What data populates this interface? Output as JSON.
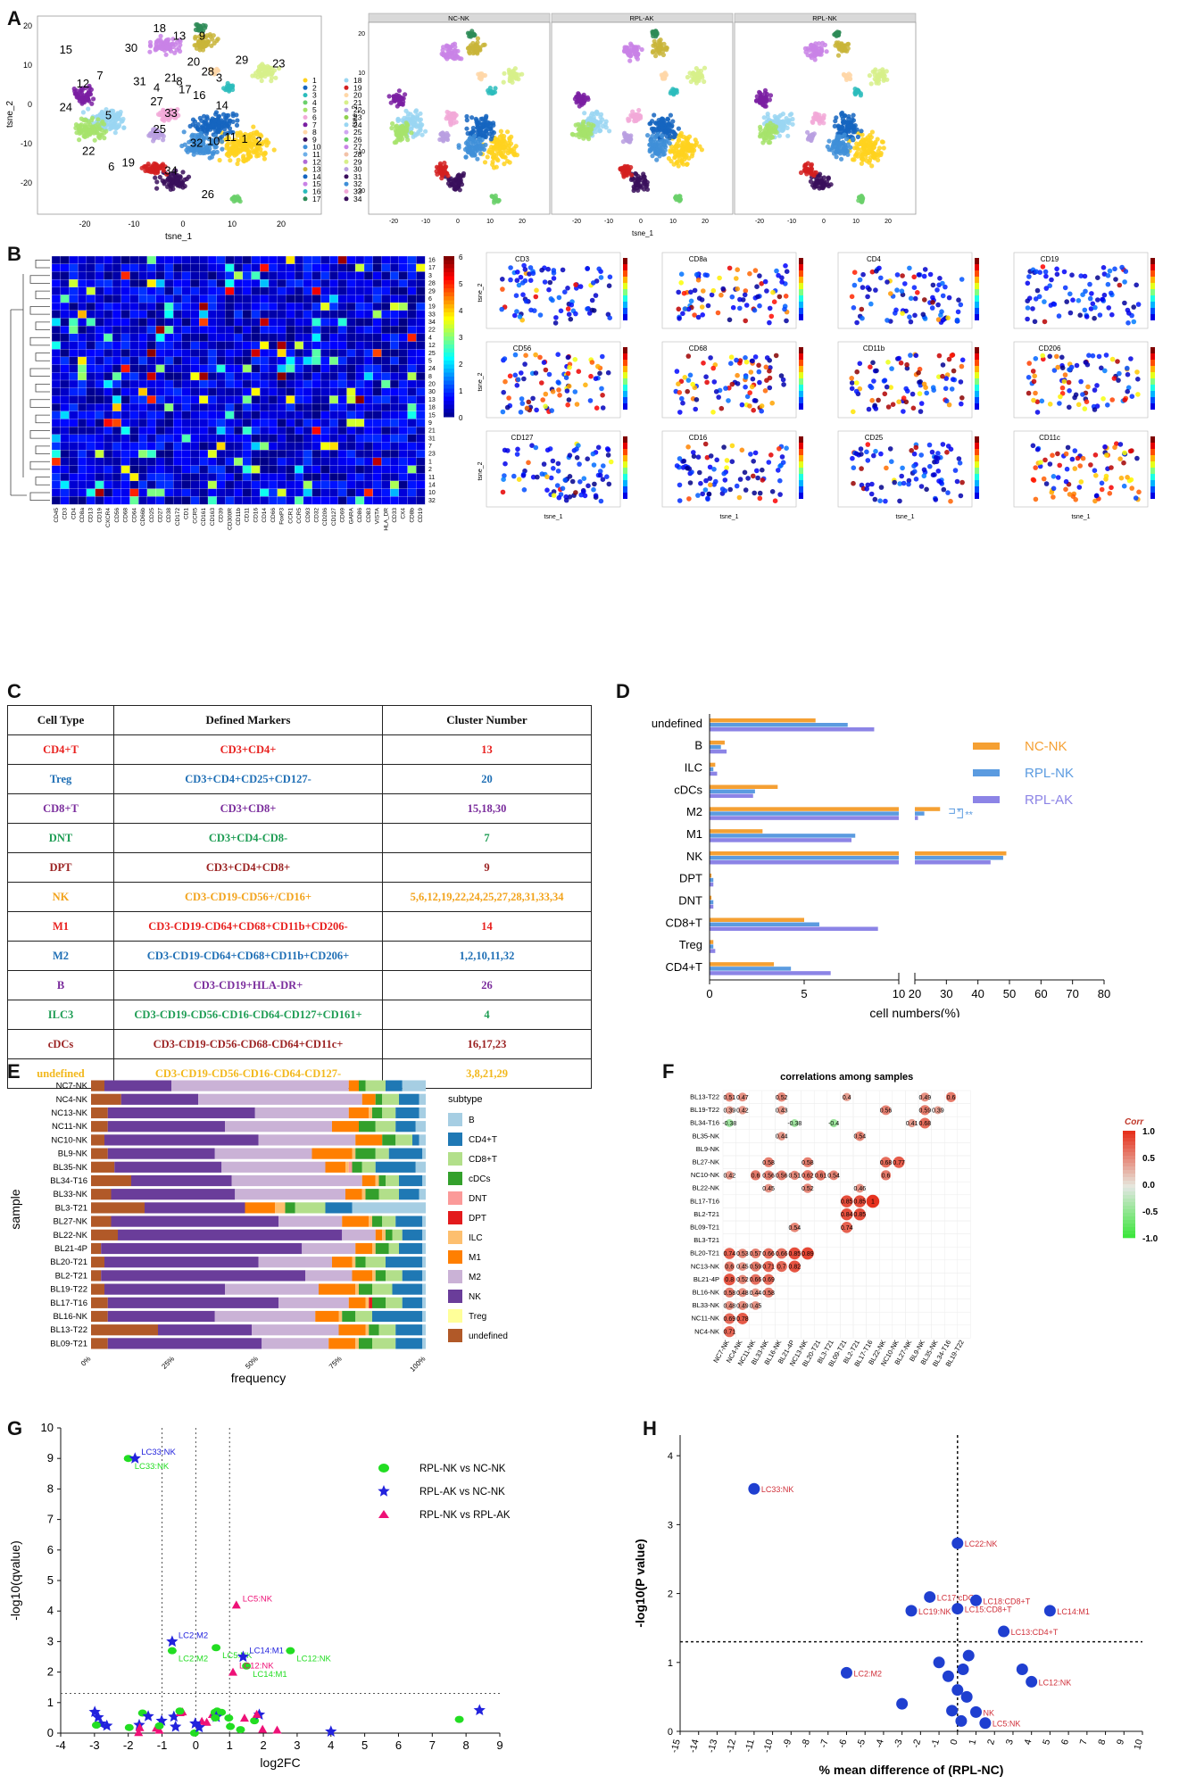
{
  "panels": {
    "A": "A",
    "B": "B",
    "C": "C",
    "D": "D",
    "E": "E",
    "F": "F",
    "G": "G",
    "H": "H"
  },
  "panelA": {
    "xlabel": "tsne_1",
    "ylabel": "tsne_2",
    "facets": [
      "NC-NK",
      "RPL-AK",
      "RPL-NK"
    ],
    "xticks": [
      "-20",
      "-10",
      "0",
      "10",
      "20"
    ],
    "yticks": [
      "20",
      "10",
      "0",
      "-10",
      "-20"
    ],
    "cluster_labels": [
      "1",
      "2",
      "3",
      "4",
      "5",
      "6",
      "7",
      "8",
      "9",
      "10",
      "11",
      "12",
      "13",
      "14",
      "15",
      "16",
      "17",
      "18",
      "19",
      "20",
      "21",
      "22",
      "23",
      "24",
      "25",
      "26",
      "27",
      "28",
      "29",
      "30",
      "31",
      "32",
      "33",
      "34"
    ]
  },
  "panelB": {
    "markers": [
      "CD45",
      "CD3",
      "CD4",
      "CD8a",
      "CD13",
      "CD19",
      "CXCR4",
      "CD56",
      "CD68",
      "CD64",
      "CD66b",
      "CD25",
      "CD27",
      "CD38",
      "CD172",
      "CD1",
      "CCR5",
      "CD161",
      "CD163",
      "CD39",
      "CD300R",
      "CD11b",
      "CD11",
      "CD16",
      "CD14",
      "CD66",
      "FoxP3",
      "CCR1",
      "CCR5",
      "CD93",
      "CD32",
      "CD206",
      "CD127",
      "CD69",
      "GARA",
      "CD86",
      "CD83",
      "VISTA",
      "HLA_DR",
      "CD33",
      "CX4",
      "CD8b",
      "CD19"
    ],
    "row_labels": [
      "16",
      "17",
      "3",
      "28",
      "29",
      "6",
      "19",
      "33",
      "34",
      "22",
      "4",
      "12",
      "25",
      "5",
      "24",
      "8",
      "20",
      "30",
      "13",
      "18",
      "15",
      "9",
      "21",
      "31",
      "7",
      "23",
      "1",
      "2",
      "11",
      "14",
      "10",
      "32"
    ],
    "colorbar": [
      "6",
      "5",
      "4",
      "3",
      "2",
      "1",
      "0"
    ],
    "feature_titles": [
      "CD3",
      "CD8a",
      "CD4",
      "CD19",
      "CD56",
      "CD68",
      "CD11b",
      "CD206",
      "CD127",
      "CD16",
      "CD25",
      "CD11c"
    ],
    "xlabel": "tsne_1",
    "ylabel": "tsne_2"
  },
  "panelC": {
    "headers": [
      "Cell Type",
      "Defined Markers",
      "Cluster Number"
    ],
    "rows": [
      {
        "type": "CD4+T",
        "markers": "CD3+CD4+",
        "clusters": "13",
        "color": "#e8201e"
      },
      {
        "type": "Treg",
        "markers": "CD3+CD4+CD25+CD127-",
        "clusters": "20",
        "color": "#1f6fb5"
      },
      {
        "type": "CD8+T",
        "markers": "CD3+CD8+",
        "clusters": "15,18,30",
        "color": "#7a2c9c"
      },
      {
        "type": "DNT",
        "markers": "CD3+CD4-CD8-",
        "clusters": "7",
        "color": "#1e9d54"
      },
      {
        "type": "DPT",
        "markers": "CD3+CD4+CD8+",
        "clusters": "9",
        "color": "#9b2222"
      },
      {
        "type": "NK",
        "markers": "CD3-CD19-CD56+/CD16+",
        "clusters": "5,6,12,19,22,24,25,27,28,31,33,34",
        "color": "#f2a31c"
      },
      {
        "type": "M1",
        "markers": "CD3-CD19-CD64+CD68+CD11b+CD206-",
        "clusters": "14",
        "color": "#e8201e"
      },
      {
        "type": "M2",
        "markers": "CD3-CD19-CD64+CD68+CD11b+CD206+",
        "clusters": "1,2,10,11,32",
        "color": "#1f6fb5"
      },
      {
        "type": "B",
        "markers": "CD3-CD19+HLA-DR+",
        "clusters": "26",
        "color": "#7a2c9c"
      },
      {
        "type": "ILC3",
        "markers": "CD3-CD19-CD56-CD16-CD64-CD127+CD161+",
        "clusters": "4",
        "color": "#1e9d54"
      },
      {
        "type": "cDCs",
        "markers": "CD3-CD19-CD56-CD68-CD64+CD11c+",
        "clusters": "16,17,23",
        "color": "#9b2222"
      },
      {
        "type": "undefined",
        "markers": "CD3-CD19-CD56-CD16-CD64-CD127-",
        "clusters": "3,8,21,29",
        "color": "#f2b81c"
      }
    ]
  },
  "panelD": {
    "legend": [
      "NC-NK",
      "RPL-NK",
      "RPL-AK"
    ],
    "colors": [
      "#f5a033",
      "#5b9be0",
      "#8c84e6"
    ],
    "xlabel": "cell numbers(%)",
    "xticks_left": [
      "0",
      "5",
      "10"
    ],
    "xticks_right": [
      "20",
      "30",
      "40",
      "50",
      "60",
      "70",
      "80"
    ],
    "sig1": "*",
    "sig2": "**",
    "chart_data": {
      "type": "bar",
      "categories": [
        "undefined",
        "B",
        "ILC",
        "cDCs",
        "M2",
        "M1",
        "NK",
        "DPT",
        "DNT",
        "CD8+T",
        "Treg",
        "CD4+T"
      ],
      "series": [
        {
          "name": "NC-NK",
          "values": [
            5.6,
            0.8,
            0.3,
            3.6,
            28,
            2.8,
            49,
            0.1,
            0.1,
            5.0,
            0.2,
            3.4
          ]
        },
        {
          "name": "RPL-NK",
          "values": [
            7.3,
            0.6,
            0.2,
            2.4,
            23,
            7.7,
            48,
            0.2,
            0.2,
            5.8,
            0.2,
            4.3
          ]
        },
        {
          "name": "RPL-AK",
          "values": [
            8.7,
            0.9,
            0.4,
            2.3,
            21,
            7.5,
            44,
            0.2,
            0.2,
            8.9,
            0.3,
            6.4
          ]
        }
      ],
      "xlabel": "cell numbers(%)",
      "xlim": [
        0,
        80
      ]
    }
  },
  "panelE": {
    "ylabel": "sample",
    "xlabel": "frequency",
    "legend_title": "subtype",
    "xticks": [
      "0%",
      "25%",
      "50%",
      "75%",
      "100%"
    ],
    "subtypes": [
      "B",
      "CD4+T",
      "CD8+T",
      "cDCs",
      "DNT",
      "DPT",
      "ILC",
      "M1",
      "M2",
      "NK",
      "Treg",
      "undefined"
    ],
    "colors": [
      "#a6cee3",
      "#1f78b4",
      "#b2df8a",
      "#33a02c",
      "#fb9a99",
      "#e31a1c",
      "#fdbf6f",
      "#ff7f00",
      "#cab2d6",
      "#6a3d9a",
      "#ffff99",
      "#b15928"
    ],
    "chart_data": {
      "type": "bar",
      "samples": [
        "NC7-NK",
        "NC4-NK",
        "NC13-NK",
        "NC11-NK",
        "NC10-NK",
        "BL9-NK",
        "BL35-NK",
        "BL34-T16",
        "BL33-NK",
        "BL3-T21",
        "BL27-NK",
        "BL22-NK",
        "BL21-4P",
        "BL20-T21",
        "BL2-T21",
        "BL19-T22",
        "BL17-T16",
        "BL16-NK",
        "BL13-T22",
        "BL09-T21"
      ],
      "order": [
        "undefined",
        "NK",
        "M2",
        "M1",
        "ILC",
        "DPT",
        "DNT",
        "cDCs",
        "CD8+T",
        "CD4+T",
        "B"
      ],
      "rows": [
        [
          0.04,
          0.2,
          0.53,
          0.03,
          0,
          0,
          0,
          0.02,
          0.06,
          0.05,
          0.07
        ],
        [
          0.09,
          0.23,
          0.49,
          0.04,
          0,
          0,
          0,
          0.02,
          0.05,
          0.06,
          0.02
        ],
        [
          0.05,
          0.44,
          0.28,
          0.06,
          0.01,
          0,
          0,
          0.03,
          0.04,
          0.07,
          0.02
        ],
        [
          0.05,
          0.35,
          0.32,
          0.08,
          0,
          0,
          0,
          0.05,
          0.06,
          0.06,
          0.03
        ],
        [
          0.04,
          0.46,
          0.29,
          0.08,
          0,
          0,
          0,
          0.04,
          0.05,
          0.02,
          0.02
        ],
        [
          0.05,
          0.32,
          0.29,
          0.12,
          0.01,
          0,
          0,
          0.06,
          0.04,
          0.1,
          0.01
        ],
        [
          0.07,
          0.32,
          0.31,
          0.06,
          0.01,
          0,
          0.01,
          0.03,
          0.04,
          0.12,
          0.03
        ],
        [
          0.12,
          0.3,
          0.39,
          0.04,
          0.01,
          0,
          0,
          0.02,
          0.04,
          0.07,
          0.01
        ],
        [
          0.06,
          0.37,
          0.33,
          0.05,
          0.01,
          0,
          0,
          0.04,
          0.06,
          0.06,
          0.02
        ],
        [
          0.16,
          0.3,
          0.0,
          0.09,
          0.03,
          0,
          0,
          0.03,
          0.09,
          0.08,
          0.22
        ],
        [
          0.06,
          0.5,
          0.19,
          0.08,
          0.01,
          0,
          0,
          0.03,
          0.04,
          0.08,
          0.01
        ],
        [
          0.08,
          0.67,
          0.1,
          0.02,
          0.01,
          0,
          0,
          0.02,
          0.03,
          0.06,
          0.01
        ],
        [
          0.03,
          0.6,
          0.16,
          0.05,
          0.01,
          0,
          0,
          0.04,
          0.03,
          0.07,
          0.01
        ],
        [
          0.04,
          0.46,
          0.22,
          0.06,
          0.01,
          0,
          0,
          0.03,
          0.06,
          0.11,
          0.01
        ],
        [
          0.03,
          0.61,
          0.14,
          0.06,
          0.01,
          0,
          0,
          0.03,
          0.05,
          0.06,
          0.01
        ],
        [
          0.04,
          0.36,
          0.28,
          0.11,
          0.01,
          0,
          0,
          0.04,
          0.06,
          0.09,
          0.01
        ],
        [
          0.05,
          0.51,
          0.21,
          0.05,
          0.01,
          0.01,
          0,
          0.04,
          0.05,
          0.06,
          0.01
        ],
        [
          0.05,
          0.32,
          0.3,
          0.07,
          0.01,
          0,
          0,
          0.04,
          0.05,
          0.15,
          0.01
        ],
        [
          0.2,
          0.28,
          0.26,
          0.08,
          0.01,
          0,
          0,
          0.03,
          0.05,
          0.08,
          0.01
        ],
        [
          0.05,
          0.46,
          0.2,
          0.08,
          0.01,
          0,
          0,
          0.04,
          0.07,
          0.08,
          0.01
        ]
      ]
    }
  },
  "panelF": {
    "title": "correlations among samples",
    "corr_title": "Corr",
    "colorbar_ticks": [
      "1.0",
      "0.5",
      "0.0",
      "-0.5",
      "-1.0"
    ],
    "rows": [
      "BL13-T22",
      "BL19-T22",
      "BL34-T16",
      "BL35-NK",
      "BL9-NK",
      "BL27-NK",
      "NC10-NK",
      "BL22-NK",
      "BL17-T16",
      "BL2-T21",
      "BL09-T21",
      "BL3-T21",
      "BL20-T21",
      "NC13-NK",
      "BL21-4P",
      "BL16-NK",
      "BL33-NK",
      "NC11-NK",
      "NC4-NK"
    ],
    "cols": [
      "NC7-NK",
      "NC4-NK",
      "NC11-NK",
      "BL33-NK",
      "BL16-NK",
      "BL21-4P",
      "NC13-NK",
      "BL20-T21",
      "BL3-T21",
      "BL09-T21",
      "BL2-T21",
      "BL17-T16",
      "BL22-NK",
      "NC10-NK",
      "BL27-NK",
      "BL9-NK",
      "BL35-NK",
      "BL34-T16",
      "BL19-T22"
    ],
    "cells": [
      [
        0,
        0,
        0.51
      ],
      [
        0,
        1,
        0.47
      ],
      [
        0,
        4,
        0.52
      ],
      [
        0,
        9,
        0.4
      ],
      [
        0,
        15,
        0.49
      ],
      [
        0,
        17,
        0.6
      ],
      [
        1,
        0,
        0.39
      ],
      [
        1,
        1,
        0.42
      ],
      [
        1,
        4,
        0.43
      ],
      [
        1,
        12,
        0.56
      ],
      [
        1,
        15,
        0.59
      ],
      [
        1,
        16,
        0.39
      ],
      [
        2,
        0,
        -0.38
      ],
      [
        2,
        5,
        -0.38
      ],
      [
        2,
        8,
        -0.4
      ],
      [
        2,
        14,
        0.41
      ],
      [
        2,
        15,
        0.68
      ],
      [
        3,
        4,
        0.44
      ],
      [
        3,
        10,
        0.54
      ],
      [
        5,
        3,
        0.58
      ],
      [
        5,
        6,
        0.58
      ],
      [
        5,
        12,
        0.68
      ],
      [
        5,
        13,
        0.77
      ],
      [
        6,
        0,
        0.42
      ],
      [
        6,
        2,
        0.6
      ],
      [
        6,
        3,
        0.56
      ],
      [
        6,
        4,
        0.56
      ],
      [
        6,
        5,
        0.51
      ],
      [
        6,
        6,
        0.62
      ],
      [
        6,
        7,
        0.61
      ],
      [
        6,
        8,
        0.54
      ],
      [
        6,
        12,
        0.6
      ],
      [
        7,
        3,
        0.45
      ],
      [
        7,
        6,
        0.52
      ],
      [
        7,
        10,
        0.46
      ],
      [
        8,
        9,
        0.85
      ],
      [
        8,
        10,
        0.85
      ],
      [
        8,
        11,
        1
      ],
      [
        9,
        9,
        0.84
      ],
      [
        9,
        10,
        0.85
      ],
      [
        10,
        5,
        0.54
      ],
      [
        10,
        9,
        0.74
      ],
      [
        12,
        0,
        0.74
      ],
      [
        12,
        1,
        0.53
      ],
      [
        12,
        2,
        0.57
      ],
      [
        12,
        3,
        0.66
      ],
      [
        12,
        4,
        0.66
      ],
      [
        12,
        5,
        0.85
      ],
      [
        12,
        6,
        0.89
      ],
      [
        13,
        0,
        0.6
      ],
      [
        13,
        1,
        0.45
      ],
      [
        13,
        2,
        0.59
      ],
      [
        13,
        3,
        0.71
      ],
      [
        13,
        4,
        0.7
      ],
      [
        13,
        5,
        0.82
      ],
      [
        14,
        0,
        0.8
      ],
      [
        14,
        1,
        0.52
      ],
      [
        14,
        2,
        0.66
      ],
      [
        14,
        3,
        0.69
      ],
      [
        15,
        0,
        0.58
      ],
      [
        15,
        1,
        0.48
      ],
      [
        15,
        2,
        0.44
      ],
      [
        15,
        3,
        0.58
      ],
      [
        16,
        0,
        0.48
      ],
      [
        16,
        1,
        0.49
      ],
      [
        16,
        2,
        0.45
      ],
      [
        17,
        0,
        0.69
      ],
      [
        17,
        1,
        0.78
      ],
      [
        18,
        0,
        0.71
      ]
    ]
  },
  "panelG": {
    "xlabel": "log2FC",
    "ylabel": "-log10(qvalue)",
    "legend": [
      "RPL-NK vs NC-NK",
      "RPL-AK vs NC-NK",
      "RPL-NK vs RPL-AK"
    ],
    "xticks": [
      "-4",
      "-3",
      "-2",
      "-1",
      "0",
      "1",
      "2",
      "3",
      "4",
      "5",
      "6",
      "7",
      "8",
      "9"
    ],
    "yticks": [
      "0",
      "1",
      "2",
      "3",
      "4",
      "5",
      "6",
      "7",
      "8",
      "9",
      "10"
    ],
    "chart_data": {
      "type": "scatter",
      "labeled": [
        {
          "label": "LC33:NK",
          "x": -2.0,
          "y": 9.0,
          "series": "RPL-NK vs NC-NK"
        },
        {
          "label": "LC33:NK",
          "x": -1.8,
          "y": 9.0,
          "series": "RPL-AK vs NC-NK"
        },
        {
          "label": "LC2:M2",
          "x": -0.7,
          "y": 3.0,
          "series": "RPL-AK vs NC-NK"
        },
        {
          "label": "LC2:M2",
          "x": -0.7,
          "y": 2.7,
          "series": "RPL-NK vs NC-NK"
        },
        {
          "label": "LC5:NK",
          "x": 1.2,
          "y": 4.2,
          "series": "RPL-NK vs RPL-AK"
        },
        {
          "label": "LC5:NK",
          "x": 0.6,
          "y": 2.8,
          "series": "RPL-NK vs NC-NK"
        },
        {
          "label": "LC14:M1",
          "x": 1.4,
          "y": 2.5,
          "series": "RPL-AK vs NC-NK"
        },
        {
          "label": "LC14:M1",
          "x": 1.5,
          "y": 2.2,
          "series": "RPL-NK vs NC-NK"
        },
        {
          "label": "LC12:NK",
          "x": 1.1,
          "y": 2.0,
          "series": "RPL-NK vs RPL-AK"
        },
        {
          "label": "LC12:NK",
          "x": 2.8,
          "y": 2.7,
          "series": "RPL-NK vs NC-NK"
        }
      ],
      "xlim": [
        -4,
        9
      ],
      "ylim": [
        0,
        10
      ]
    }
  },
  "panelH": {
    "xlabel": "% mean difference of (RPL-NC)",
    "ylabel": "-log10(P value)",
    "xticks": [
      "-15",
      "-14",
      "-13",
      "-12",
      "-11",
      "-10",
      "-9",
      "-8",
      "-7",
      "-6",
      "-5",
      "-4",
      "-3",
      "-2",
      "-1",
      "0",
      "1",
      "2",
      "3",
      "4",
      "5",
      "6",
      "7",
      "8",
      "9",
      "10"
    ],
    "yticks": [
      "0",
      "1",
      "2",
      "3",
      "4"
    ],
    "chart_data": {
      "type": "scatter",
      "points": [
        {
          "label": "LC33:NK",
          "x": -11,
          "y": 3.52
        },
        {
          "label": "LC22:NK",
          "x": 0,
          "y": 2.73
        },
        {
          "label": "LC17:cDCs",
          "x": -1.5,
          "y": 1.95
        },
        {
          "label": "LC18:CD8+T",
          "x": 1,
          "y": 1.9
        },
        {
          "label": "LC14:M1",
          "x": 5,
          "y": 1.75
        },
        {
          "label": "LC19:NK",
          "x": -2.5,
          "y": 1.75
        },
        {
          "label": "LC15:CD8+T",
          "x": 0,
          "y": 1.78
        },
        {
          "label": "LC13:CD4+T",
          "x": 2.5,
          "y": 1.45
        },
        {
          "label": "LC2:M2",
          "x": -6,
          "y": 0.85
        },
        {
          "label": "LC12:NK",
          "x": 4,
          "y": 0.72
        },
        {
          "label": "NK",
          "x": 1,
          "y": 0.28
        },
        {
          "label": "LC5:NK",
          "x": 1.5,
          "y": 0.12
        }
      ],
      "xlim": [
        -15,
        10
      ],
      "ylim": [
        0,
        4
      ]
    }
  }
}
